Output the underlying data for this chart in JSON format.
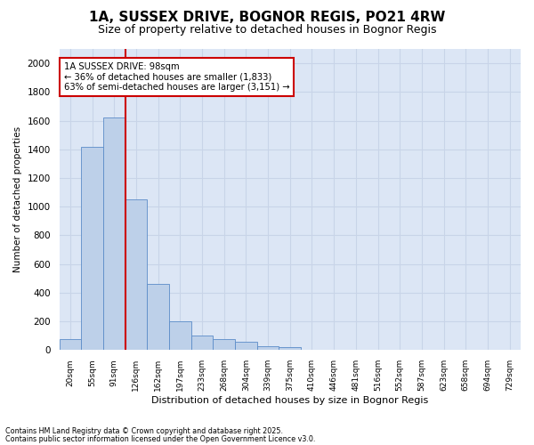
{
  "title": "1A, SUSSEX DRIVE, BOGNOR REGIS, PO21 4RW",
  "subtitle": "Size of property relative to detached houses in Bognor Regis",
  "xlabel": "Distribution of detached houses by size in Bognor Regis",
  "ylabel": "Number of detached properties",
  "categories": [
    "20sqm",
    "55sqm",
    "91sqm",
    "126sqm",
    "162sqm",
    "197sqm",
    "233sqm",
    "268sqm",
    "304sqm",
    "339sqm",
    "375sqm",
    "410sqm",
    "446sqm",
    "481sqm",
    "516sqm",
    "552sqm",
    "587sqm",
    "623sqm",
    "658sqm",
    "694sqm",
    "729sqm"
  ],
  "values": [
    75,
    1420,
    1620,
    1050,
    460,
    200,
    100,
    75,
    55,
    30,
    20,
    0,
    0,
    0,
    0,
    0,
    0,
    0,
    0,
    0,
    0
  ],
  "bar_color": "#bdd0e9",
  "bar_edge_color": "#5b8cc8",
  "grid_color": "#c8d4e8",
  "background_color": "#dce6f5",
  "vline_color": "#cc0000",
  "annotation_text": "1A SUSSEX DRIVE: 98sqm\n← 36% of detached houses are smaller (1,833)\n63% of semi-detached houses are larger (3,151) →",
  "annotation_box_color": "#cc0000",
  "ylim": [
    0,
    2100
  ],
  "yticks": [
    0,
    200,
    400,
    600,
    800,
    1000,
    1200,
    1400,
    1600,
    1800,
    2000
  ],
  "footnote1": "Contains HM Land Registry data © Crown copyright and database right 2025.",
  "footnote2": "Contains public sector information licensed under the Open Government Licence v3.0.",
  "title_fontsize": 11,
  "subtitle_fontsize": 9
}
